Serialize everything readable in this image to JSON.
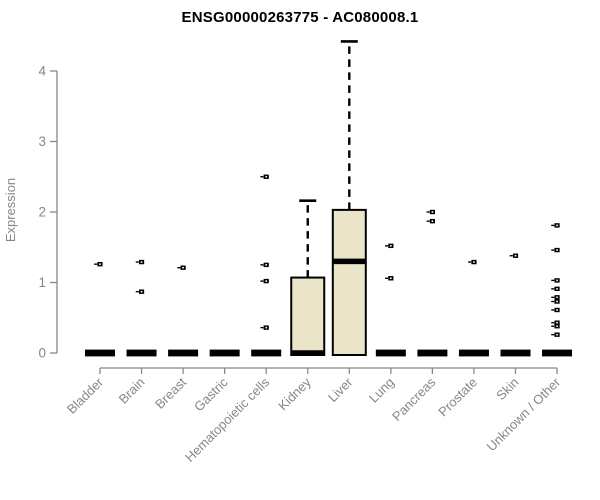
{
  "chart_data": {
    "type": "boxplot",
    "title": "ENSG00000263775 - AC080008.1",
    "ylabel": "Expression",
    "xlabel": "",
    "ylim": [
      0,
      4.5
    ],
    "yticks": [
      0,
      1,
      2,
      3,
      4
    ],
    "grid": false,
    "legend": null,
    "colors": {
      "box_fill": "#EAE4C8",
      "box_stroke": "#000000",
      "axis": "#888888",
      "tick_label": "#878787",
      "title": "#000000",
      "point": "#000000"
    },
    "categories": [
      {
        "label": "Bladder",
        "q1": 0,
        "median": 0,
        "q3": 0,
        "whisker_low": 0,
        "whisker_high": 0,
        "outliers": [
          1.26
        ]
      },
      {
        "label": "Brain",
        "q1": 0,
        "median": 0,
        "q3": 0,
        "whisker_low": 0,
        "whisker_high": 0,
        "outliers": [
          1.29,
          0.87
        ]
      },
      {
        "label": "Breast",
        "q1": 0,
        "median": 0,
        "q3": 0,
        "whisker_low": 0,
        "whisker_high": 0,
        "outliers": [
          1.21
        ]
      },
      {
        "label": "Gastric",
        "q1": 0,
        "median": 0,
        "q3": 0,
        "whisker_low": 0,
        "whisker_high": 0,
        "outliers": []
      },
      {
        "label": "Hematopoietic cells",
        "q1": 0,
        "median": 0,
        "q3": 0,
        "whisker_low": 0,
        "whisker_high": 0,
        "outliers": [
          2.5,
          1.25,
          1.02,
          0.36
        ]
      },
      {
        "label": "Kidney",
        "q1": 0,
        "median": 0,
        "q3": 1.07,
        "whisker_low": 0,
        "whisker_high": 2.16,
        "outliers": []
      },
      {
        "label": "Liver",
        "q1": 0,
        "median": 1.3,
        "q3": 2.03,
        "whisker_low": 0,
        "whisker_high": 4.42,
        "outliers": []
      },
      {
        "label": "Lung",
        "q1": 0,
        "median": 0,
        "q3": 0,
        "whisker_low": 0,
        "whisker_high": 0,
        "outliers": [
          1.52,
          1.06
        ]
      },
      {
        "label": "Pancreas",
        "q1": 0,
        "median": 0,
        "q3": 0,
        "whisker_low": 0,
        "whisker_high": 0,
        "outliers": [
          2.0,
          1.87
        ]
      },
      {
        "label": "Prostate",
        "q1": 0,
        "median": 0,
        "q3": 0,
        "whisker_low": 0,
        "whisker_high": 0,
        "outliers": [
          1.29
        ]
      },
      {
        "label": "Skin",
        "q1": 0,
        "median": 0,
        "q3": 0,
        "whisker_low": 0,
        "whisker_high": 0,
        "outliers": [
          1.38
        ]
      },
      {
        "label": "Unknown / Other",
        "q1": 0,
        "median": 0,
        "q3": 0,
        "whisker_low": 0,
        "whisker_high": 0,
        "outliers": [
          1.81,
          1.46,
          1.03,
          0.91,
          0.79,
          0.73,
          0.61,
          0.43,
          0.38,
          0.26
        ]
      }
    ]
  }
}
